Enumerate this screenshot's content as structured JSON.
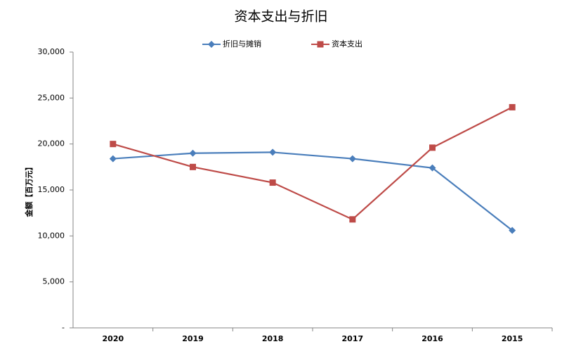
{
  "chart_data": {
    "type": "line",
    "title": "资本支出与折旧",
    "y_label": "金额【百万元】",
    "categories": [
      "2020",
      "2019",
      "2018",
      "2017",
      "2016",
      "2015"
    ],
    "series": [
      {
        "name": "折旧与摊销",
        "color": "#4a7ebb",
        "marker": "diamond",
        "values": [
          18400,
          19000,
          19100,
          18400,
          17400,
          10600
        ]
      },
      {
        "name": "资本支出",
        "color": "#be4b48",
        "marker": "square",
        "values": [
          20000,
          17500,
          15800,
          11800,
          19600,
          24000
        ]
      }
    ],
    "ylim": [
      0,
      30000
    ],
    "yticks": [
      {
        "value": 0,
        "label": "-"
      },
      {
        "value": 5000,
        "label": "5,000"
      },
      {
        "value": 10000,
        "label": "10,000"
      },
      {
        "value": 15000,
        "label": "15,000"
      },
      {
        "value": 20000,
        "label": "20,000"
      },
      {
        "value": 25000,
        "label": "25,000"
      },
      {
        "value": 30000,
        "label": "30,000"
      }
    ],
    "grid": false,
    "legend": "top"
  }
}
